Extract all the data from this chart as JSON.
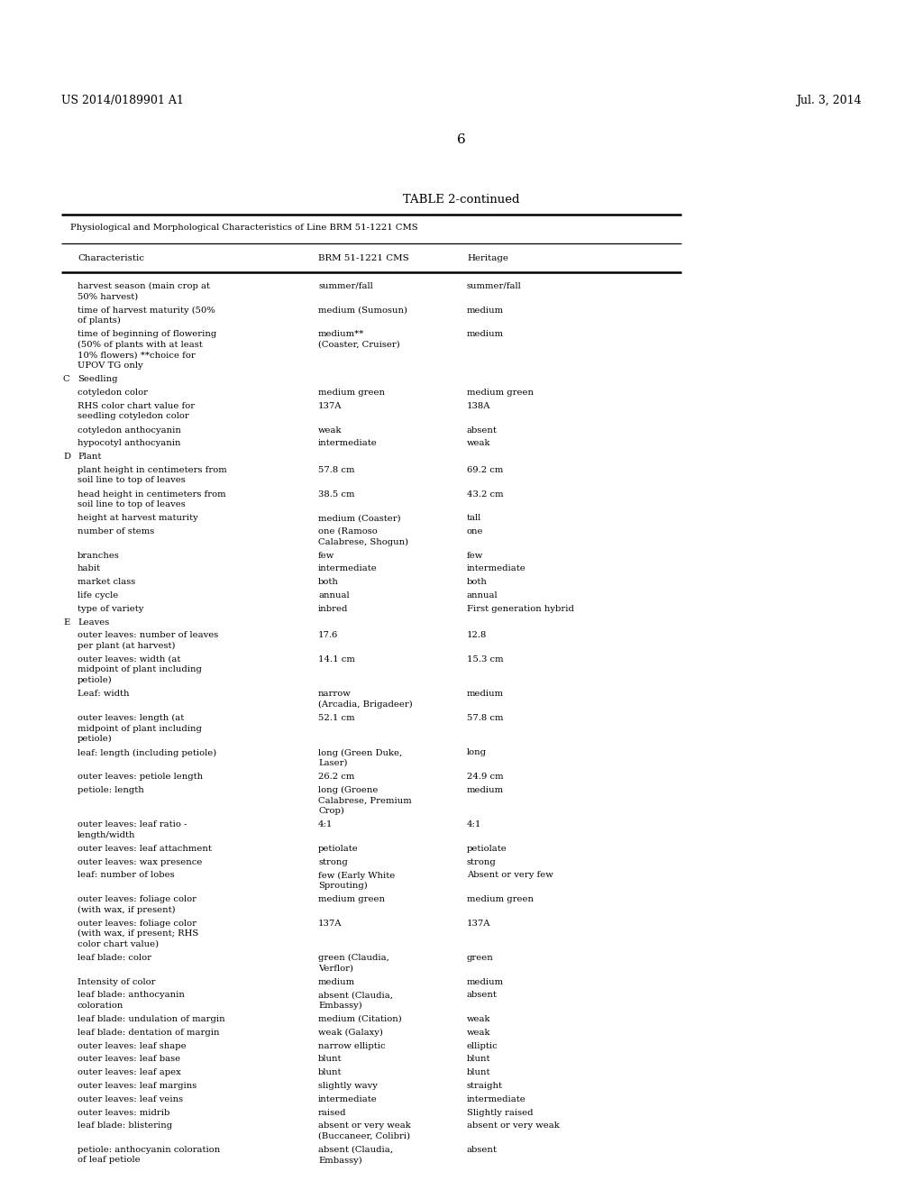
{
  "header_left": "US 2014/0189901 A1",
  "header_right": "Jul. 3, 2014",
  "page_number": "6",
  "table_title": "TABLE 2-continued",
  "subtitle": "Physiological and Morphological Characteristics of Line BRM 51-1221 CMS",
  "col1_header": "Characteristic",
  "col2_header": "BRM 51-1221 CMS",
  "col3_header": "Heritage",
  "rows": [
    {
      "label": "harvest season (main crop at\n50% harvest)",
      "indent": 1,
      "col2": "summer/fall",
      "col3": "summer/fall"
    },
    {
      "label": "time of harvest maturity (50%\nof plants)",
      "indent": 1,
      "col2": "medium (Sumosun)",
      "col3": "medium"
    },
    {
      "label": "time of beginning of flowering\n(50% of plants with at least\n10% flowers) **choice for\nUPOV TG only",
      "indent": 1,
      "col2": "medium**\n(Coaster, Cruiser)",
      "col3": "medium"
    },
    {
      "label": "Seedling",
      "indent": 0,
      "letter": "C",
      "col2": "",
      "col3": ""
    },
    {
      "label": "cotyledon color",
      "indent": 1,
      "col2": "medium green",
      "col3": "medium green"
    },
    {
      "label": "RHS color chart value for\nseedling cotyledon color",
      "indent": 1,
      "col2": "137A",
      "col3": "138A"
    },
    {
      "label": "cotyledon anthocyanin",
      "indent": 1,
      "col2": "weak",
      "col3": "absent"
    },
    {
      "label": "hypocotyl anthocyanin",
      "indent": 1,
      "col2": "intermediate",
      "col3": "weak"
    },
    {
      "label": "Plant",
      "indent": 0,
      "letter": "D",
      "col2": "",
      "col3": ""
    },
    {
      "label": "plant height in centimeters from\nsoil line to top of leaves",
      "indent": 1,
      "col2": "57.8 cm",
      "col3": "69.2 cm"
    },
    {
      "label": "head height in centimeters from\nsoil line to top of leaves",
      "indent": 1,
      "col2": "38.5 cm",
      "col3": "43.2 cm"
    },
    {
      "label": "height at harvest maturity",
      "indent": 1,
      "col2": "medium (Coaster)",
      "col3": "tall"
    },
    {
      "label": "number of stems",
      "indent": 1,
      "col2": "one (Ramoso\nCalabrese, Shogun)",
      "col3": "one"
    },
    {
      "label": "branches",
      "indent": 1,
      "col2": "few",
      "col3": "few"
    },
    {
      "label": "habit",
      "indent": 1,
      "col2": "intermediate",
      "col3": "intermediate"
    },
    {
      "label": "market class",
      "indent": 1,
      "col2": "both",
      "col3": "both"
    },
    {
      "label": "life cycle",
      "indent": 1,
      "col2": "annual",
      "col3": "annual"
    },
    {
      "label": "type of variety",
      "indent": 1,
      "col2": "inbred",
      "col3": "First generation hybrid"
    },
    {
      "label": "Leaves",
      "indent": 0,
      "letter": "E",
      "col2": "",
      "col3": ""
    },
    {
      "label": "outer leaves: number of leaves\nper plant (at harvest)",
      "indent": 1,
      "col2": "17.6",
      "col3": "12.8"
    },
    {
      "label": "outer leaves: width (at\nmidpoint of plant including\npetiole)",
      "indent": 1,
      "col2": "14.1 cm",
      "col3": "15.3 cm"
    },
    {
      "label": "Leaf: width",
      "indent": 1,
      "col2": "narrow\n(Arcadia, Brigadeer)",
      "col3": "medium"
    },
    {
      "label": "outer leaves: length (at\nmidpoint of plant including\npetiole)",
      "indent": 1,
      "col2": "52.1 cm",
      "col3": "57.8 cm"
    },
    {
      "label": "leaf: length (including petiole)",
      "indent": 1,
      "col2": "long (Green Duke,\nLaser)",
      "col3": "long"
    },
    {
      "label": "outer leaves: petiole length",
      "indent": 1,
      "col2": "26.2 cm",
      "col3": "24.9 cm"
    },
    {
      "label": "petiole: length",
      "indent": 1,
      "col2": "long (Groene\nCalabrese, Premium\nCrop)",
      "col3": "medium"
    },
    {
      "label": "outer leaves: leaf ratio -\nlength/width",
      "indent": 1,
      "col2": "4:1",
      "col3": "4:1"
    },
    {
      "label": "outer leaves: leaf attachment",
      "indent": 1,
      "col2": "petiolate",
      "col3": "petiolate"
    },
    {
      "label": "outer leaves: wax presence",
      "indent": 1,
      "col2": "strong",
      "col3": "strong"
    },
    {
      "label": "leaf: number of lobes",
      "indent": 1,
      "col2": "few (Early White\nSprouting)",
      "col3": "Absent or very few"
    },
    {
      "label": "outer leaves: foliage color\n(with wax, if present)",
      "indent": 1,
      "col2": "medium green",
      "col3": "medium green"
    },
    {
      "label": "outer leaves: foliage color\n(with wax, if present; RHS\ncolor chart value)",
      "indent": 1,
      "col2": "137A",
      "col3": "137A"
    },
    {
      "label": "leaf blade: color",
      "indent": 1,
      "col2": "green (Claudia,\nVerflor)",
      "col3": "green"
    },
    {
      "label": "Intensity of color",
      "indent": 1,
      "col2": "medium",
      "col3": "medium"
    },
    {
      "label": "leaf blade: anthocyanin\ncoloration",
      "indent": 1,
      "col2": "absent (Claudia,\nEmbassy)",
      "col3": "absent"
    },
    {
      "label": "leaf blade: undulation of margin",
      "indent": 1,
      "col2": "medium (Citation)",
      "col3": "weak"
    },
    {
      "label": "leaf blade: dentation of margin",
      "indent": 1,
      "col2": "weak (Galaxy)",
      "col3": "weak"
    },
    {
      "label": "outer leaves: leaf shape",
      "indent": 1,
      "col2": "narrow elliptic",
      "col3": "elliptic"
    },
    {
      "label": "outer leaves: leaf base",
      "indent": 1,
      "col2": "blunt",
      "col3": "blunt"
    },
    {
      "label": "outer leaves: leaf apex",
      "indent": 1,
      "col2": "blunt",
      "col3": "blunt"
    },
    {
      "label": "outer leaves: leaf margins",
      "indent": 1,
      "col2": "slightly wavy",
      "col3": "straight"
    },
    {
      "label": "outer leaves: leaf veins",
      "indent": 1,
      "col2": "intermediate",
      "col3": "intermediate"
    },
    {
      "label": "outer leaves: midrib",
      "indent": 1,
      "col2": "raised",
      "col3": "Slightly raised"
    },
    {
      "label": "leaf blade: blistering",
      "indent": 1,
      "col2": "absent or very weak\n(Buccaneer, Colibri)",
      "col3": "absent or very weak"
    },
    {
      "label": "petiole: anthocyanin coloration\nof leaf petiole",
      "indent": 1,
      "col2": "absent (Claudia,\nEmbassy)",
      "col3": "absent"
    }
  ],
  "bg_color": "#ffffff",
  "text_color": "#000000"
}
